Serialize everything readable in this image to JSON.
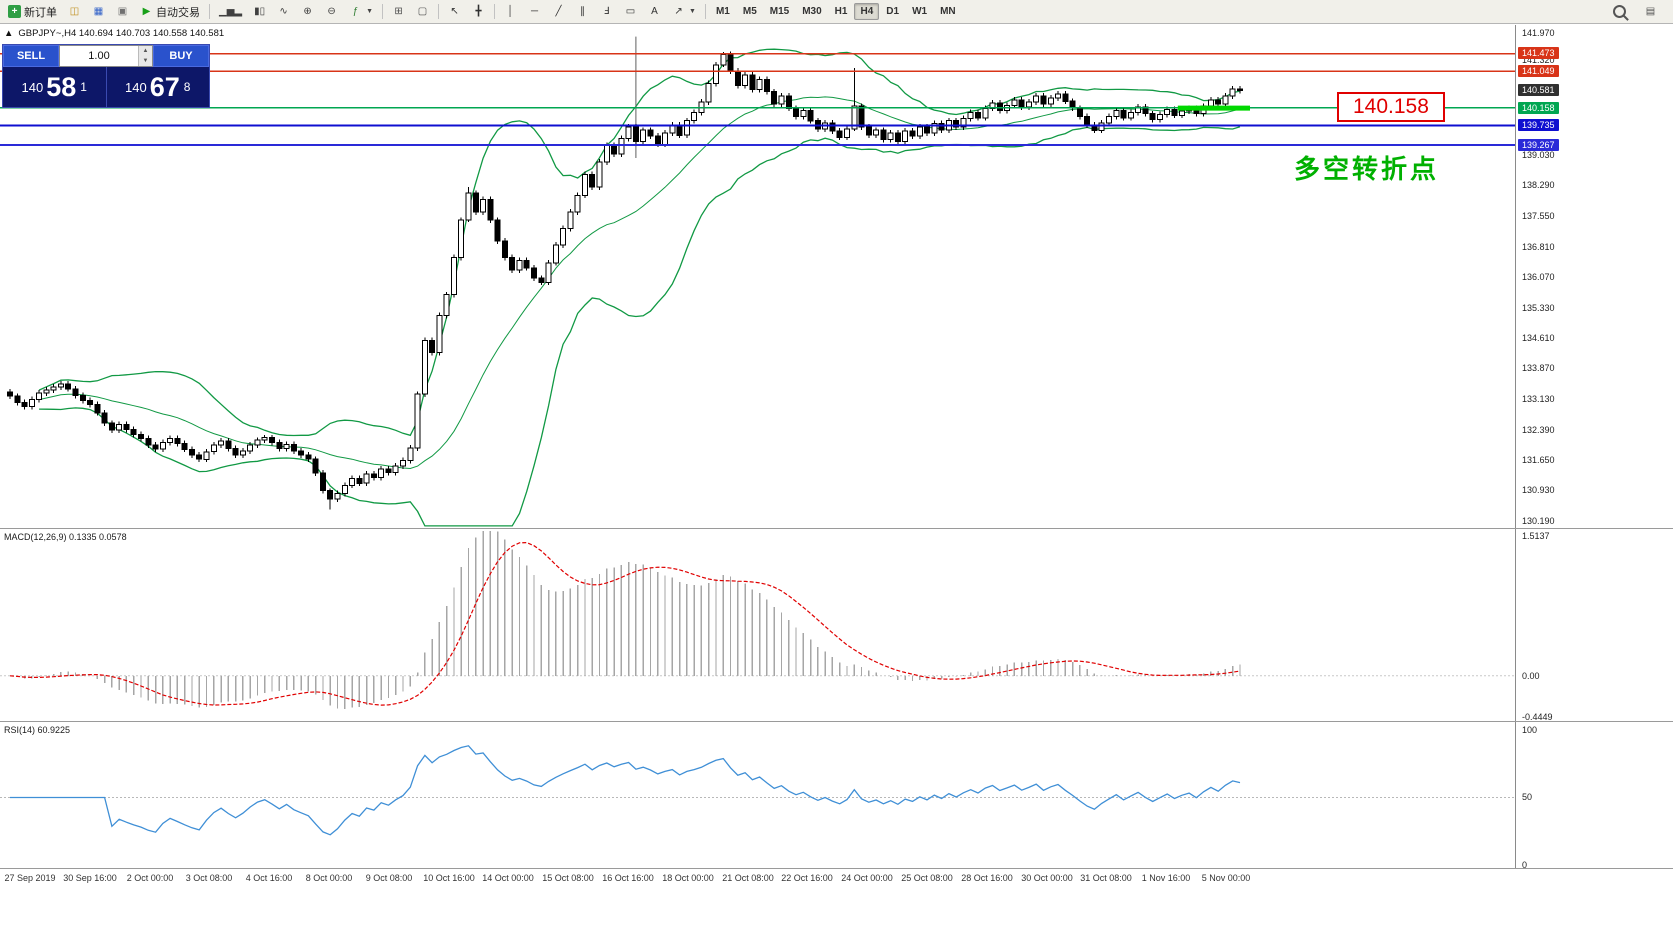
{
  "toolbar": {
    "items": [
      {
        "t": "btn",
        "n": "new-order-button",
        "g": "+",
        "bg": "#2f9e44",
        "label": "新订单"
      },
      {
        "t": "ico",
        "n": "layout-profiles-icon",
        "g": "◫",
        "c": "#c09020"
      },
      {
        "t": "ico",
        "n": "market-watch-icon",
        "g": "▦",
        "c": "#3060c8"
      },
      {
        "t": "ico",
        "n": "data-window-icon",
        "g": "▣",
        "c": "#707070"
      },
      {
        "t": "btn",
        "n": "auto-trading-button",
        "g": "▶",
        "c": "#18a018",
        "label": "自动交易"
      },
      {
        "t": "sep"
      },
      {
        "t": "ico",
        "n": "bar-chart-icon",
        "g": "▁▅▂",
        "c": "#404040"
      },
      {
        "t": "ico",
        "n": "candlestick-chart-icon",
        "g": "▮▯",
        "c": "#404040"
      },
      {
        "t": "ico",
        "n": "line-chart-icon",
        "g": "∿",
        "c": "#404040"
      },
      {
        "t": "ico",
        "n": "zoom-in-icon",
        "g": "⊕",
        "c": "#404040"
      },
      {
        "t": "ico",
        "n": "zoom-out-icon",
        "g": "⊖",
        "c": "#404040"
      },
      {
        "t": "ico",
        "n": "indicators-icon",
        "g": "ƒ",
        "c": "#2f7d32",
        "car": true
      },
      {
        "t": "sep"
      },
      {
        "t": "ico",
        "n": "tile-windows-icon",
        "g": "⊞",
        "c": "#505050"
      },
      {
        "t": "ico",
        "n": "cascade-windows-icon",
        "g": "▢",
        "c": "#505050"
      },
      {
        "t": "sep"
      },
      {
        "t": "ico",
        "n": "cursor-icon",
        "g": "↖",
        "c": "#303030"
      },
      {
        "t": "ico",
        "n": "crosshair-icon",
        "g": "╋",
        "c": "#303030"
      },
      {
        "t": "sep"
      },
      {
        "t": "ico",
        "n": "vertical-line-icon",
        "g": "│",
        "c": "#303030"
      },
      {
        "t": "ico",
        "n": "horizontal-line-icon",
        "g": "─",
        "c": "#303030"
      },
      {
        "t": "ico",
        "n": "trendline-icon",
        "g": "╱",
        "c": "#303030"
      },
      {
        "t": "ico",
        "n": "equidistant-channel-icon",
        "g": "∥",
        "c": "#303030"
      },
      {
        "t": "ico",
        "n": "fibonacci-icon",
        "g": "Ⅎ",
        "c": "#303030"
      },
      {
        "t": "ico",
        "n": "shapes-icon",
        "g": "▭",
        "c": "#303030"
      },
      {
        "t": "ico",
        "n": "text-label-icon",
        "g": "A",
        "c": "#303030"
      },
      {
        "t": "ico",
        "n": "arrow-objects-icon",
        "g": "↗",
        "c": "#303030",
        "car": true
      },
      {
        "t": "sep"
      },
      {
        "t": "tf",
        "n": "timeframe-m1",
        "label": "M1"
      },
      {
        "t": "tf",
        "n": "timeframe-m5",
        "label": "M5"
      },
      {
        "t": "tf",
        "n": "timeframe-m15",
        "label": "M15"
      },
      {
        "t": "tf",
        "n": "timeframe-m30",
        "label": "M30"
      },
      {
        "t": "tf",
        "n": "timeframe-h1",
        "label": "H1"
      },
      {
        "t": "tf",
        "n": "timeframe-h4",
        "label": "H4",
        "active": true
      },
      {
        "t": "tf",
        "n": "timeframe-d1",
        "label": "D1"
      },
      {
        "t": "tf",
        "n": "timeframe-w1",
        "label": "W1"
      },
      {
        "t": "tf",
        "n": "timeframe-mn",
        "label": "MN"
      }
    ],
    "right_items": [
      {
        "t": "search",
        "n": "search-icon"
      },
      {
        "t": "ico",
        "n": "chart-window-icon",
        "g": "▤",
        "c": "#505050"
      }
    ]
  },
  "symbol_info": {
    "collapse_icon": "▲",
    "text": "GBPJPY~,H4  140.694 140.703 140.558 140.581"
  },
  "one_click": {
    "sell_label": "SELL",
    "buy_label": "BUY",
    "volume": "1.00",
    "sell_price_big": "140",
    "sell_price_pips": "58",
    "sell_price_sup": "1",
    "buy_price_big": "140",
    "buy_price_pips": "67",
    "buy_price_sup": "8"
  },
  "annotations": {
    "price_callout": "140.158",
    "cn_note": "多空转折点"
  },
  "panes": {
    "macd_label": "MACD(12,26,9) 0.1335 0.0578",
    "rsi_label": "RSI(14) 60.9225"
  },
  "chart_data": {
    "type": "candlestick",
    "symbol": "GBPJPY",
    "timeframe": "H4",
    "ohlc": {
      "open": 140.694,
      "high": 140.703,
      "low": 140.558,
      "close": 140.581
    },
    "price_range": [
      130.02,
      142.16
    ],
    "first_open": 133.3,
    "default_wick": 0.07,
    "closes": [
      133.2,
      133.05,
      132.95,
      133.12,
      133.28,
      133.35,
      133.42,
      133.5,
      133.38,
      133.22,
      133.1,
      133.0,
      132.8,
      132.55,
      132.38,
      132.52,
      132.4,
      132.28,
      132.18,
      132.02,
      131.92,
      132.08,
      132.18,
      132.06,
      131.92,
      131.78,
      131.68,
      131.86,
      132.02,
      132.12,
      131.94,
      131.78,
      131.88,
      132.02,
      132.14,
      132.2,
      132.08,
      131.94,
      132.04,
      131.88,
      131.78,
      131.68,
      131.35,
      130.92,
      130.72,
      130.85,
      131.05,
      131.22,
      131.1,
      131.32,
      131.24,
      131.45,
      131.36,
      131.52,
      131.65,
      131.95,
      133.25,
      134.55,
      134.25,
      135.15,
      135.65,
      136.55,
      137.45,
      138.1,
      137.65,
      137.95,
      137.45,
      136.95,
      136.55,
      136.25,
      136.48,
      136.3,
      136.05,
      135.95,
      136.42,
      136.85,
      137.25,
      137.65,
      138.05,
      138.55,
      138.25,
      138.85,
      139.25,
      139.05,
      139.42,
      139.7,
      139.35,
      139.62,
      139.48,
      139.28,
      139.55,
      139.75,
      139.5,
      139.85,
      140.05,
      140.3,
      140.75,
      141.2,
      141.45,
      141.05,
      140.7,
      140.95,
      140.6,
      140.85,
      140.55,
      140.25,
      140.45,
      140.15,
      139.95,
      140.1,
      139.85,
      139.65,
      139.8,
      139.6,
      139.45,
      139.65,
      140.2,
      139.7,
      139.5,
      139.62,
      139.4,
      139.55,
      139.35,
      139.6,
      139.48,
      139.7,
      139.55,
      139.78,
      139.62,
      139.85,
      139.7,
      139.9,
      140.05,
      139.92,
      140.15,
      140.28,
      140.1,
      140.22,
      140.35,
      140.18,
      140.3,
      140.45,
      140.25,
      140.4,
      140.5,
      140.32,
      140.15,
      139.95,
      139.75,
      139.62,
      139.8,
      139.95,
      140.1,
      139.92,
      140.05,
      140.18,
      140.02,
      139.88,
      140.0,
      140.12,
      139.98,
      140.08,
      140.15,
      140.02,
      140.2,
      140.35,
      140.25,
      140.45,
      140.62,
      140.58
    ],
    "wick_overrides": {
      "44": [
        0.05,
        0.25
      ],
      "63": [
        0.15,
        0.05
      ],
      "98": [
        0.06,
        0.05
      ],
      "116": [
        0.92,
        0.05
      ]
    },
    "x_labels": [
      "27 Sep 2019",
      "30 Sep 16:00",
      "2 Oct 00:00",
      "3 Oct 08:00",
      "4 Oct 16:00",
      "8 Oct 00:00",
      "9 Oct 08:00",
      "10 Oct 16:00",
      "14 Oct 00:00",
      "15 Oct 08:00",
      "16 Oct 16:00",
      "18 Oct 00:00",
      "21 Oct 08:00",
      "22 Oct 16:00",
      "24 Oct 00:00",
      "25 Oct 08:00",
      "28 Oct 16:00",
      "30 Oct 00:00",
      "31 Oct 08:00",
      "1 Nov 16:00",
      "5 Nov 00:00"
    ],
    "x_label_start": 30,
    "x_label_step": 59.8,
    "y_ticks_plain": [
      "141.970",
      "141.320",
      "139.030",
      "138.290",
      "137.550",
      "136.810",
      "136.070",
      "135.330",
      "134.610",
      "133.870",
      "133.130",
      "132.390",
      "131.650",
      "130.930",
      "130.190"
    ],
    "hlines": [
      {
        "value": 141.473,
        "label": "141.473",
        "color": "#d83418",
        "width": 1.5
      },
      {
        "value": 141.049,
        "label": "141.049",
        "color": "#d83418",
        "width": 1.5
      },
      {
        "value": 140.158,
        "label": "140.158",
        "color": "#00a651",
        "width": 1.5
      },
      {
        "value": 139.735,
        "label": "139.735",
        "color": "#0f0fd0",
        "width": 2
      },
      {
        "value": 139.267,
        "label": "139.267",
        "color": "#2a2ad8",
        "width": 2
      }
    ],
    "current_price": {
      "value": 140.581,
      "label": "140.581",
      "chip_bg": "#303030"
    },
    "green_segment": {
      "value": 140.155,
      "from_bar": 161,
      "to_bar": 169,
      "color": "#00d800",
      "width": 5
    },
    "vline": {
      "bar": 86,
      "from": 141.88,
      "to": 138.95,
      "color": "#606060"
    },
    "bollinger": {
      "period": 20,
      "deviation": 2,
      "color": "#119944"
    },
    "macd": {
      "fast": 12,
      "slow": 26,
      "signal": 9,
      "range": [
        -0.489,
        1.589
      ],
      "ticks": [
        {
          "label": "1.5137",
          "value": 1.5137
        },
        {
          "label": "0.00",
          "value": 0
        },
        {
          "label": "-0.4449",
          "value": -0.4449
        }
      ],
      "hist_color": "#a6a6a6",
      "signal_color": "#e00000"
    },
    "rsi": {
      "period": 14,
      "range": [
        -2.2,
        105.9
      ],
      "ticks": [
        {
          "label": "100",
          "value": 100
        },
        {
          "label": "50",
          "value": 50
        },
        {
          "label": "0",
          "value": 0
        }
      ],
      "color": "#3f8fd6",
      "mid_level": 50
    }
  }
}
